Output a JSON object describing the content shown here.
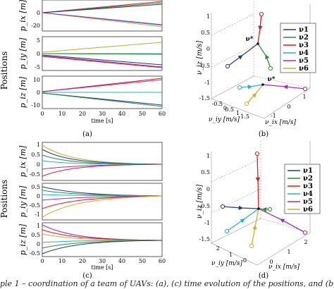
{
  "panels": {
    "a": {
      "side_label": "Positions",
      "ylabels": [
        "p_ix [m]",
        "p_iy [m]",
        "p_iz [m]"
      ],
      "xlabel": "time [s]",
      "xticks": [
        "0",
        "10",
        "20",
        "30",
        "40",
        "50",
        "60"
      ],
      "yticks": [
        [
          "0",
          "-20"
        ],
        [
          "5",
          "0",
          "-5"
        ],
        [
          "10",
          "0",
          "-10"
        ]
      ],
      "tag": "(a)"
    },
    "b": {
      "zlabel": "ν_iz [m/s]",
      "xlabel": "ν_ix [m/s]",
      "ylabel": "ν_iy [m/s]",
      "ztick_labels": [
        "1",
        "0.5",
        "0",
        "-0.5",
        "-1",
        "-1.5"
      ],
      "xtick_labels": [
        "-1",
        "0",
        "1"
      ],
      "ytick_labels": [
        "-0.5",
        "0",
        "0.5",
        "1",
        "1.5"
      ],
      "star_label": "ν*",
      "tag": "(b)"
    },
    "c": {
      "side_label": "Positions",
      "ylabels": [
        "p_ix [m]",
        "p_iy [m]",
        "p_iz [m]"
      ],
      "xlabel": "time [s]",
      "xticks": [
        "0",
        "10",
        "20",
        "30",
        "40",
        "50",
        "60"
      ],
      "yticks": [
        [
          "1",
          "0.5",
          "0",
          "-0.5"
        ],
        [
          "0.5",
          "0",
          "-0.5",
          "-1"
        ],
        [
          "1",
          "0.5",
          "0",
          "-0.5"
        ]
      ],
      "tag": "(c)"
    },
    "d": {
      "zlabel": "ν_iz [m/s]",
      "xlabel": "ν_ix [m/s]",
      "ylabel": "ν_iy [m/s]",
      "ztick_labels": [
        "1",
        "0.5",
        "0",
        "-0.5",
        "-1",
        "-1.5"
      ],
      "xtick_labels": [
        "0",
        "1",
        "2"
      ],
      "ytick_labels": [
        "2",
        "1",
        "0"
      ],
      "tag": "(d)"
    }
  },
  "legend": {
    "entries": [
      {
        "label": "ν1",
        "color": "#1f3d8a"
      },
      {
        "label": "ν2",
        "color": "#2e8b3a"
      },
      {
        "label": "ν3",
        "color": "#d62020"
      },
      {
        "label": "ν4",
        "color": "#20b5c0"
      },
      {
        "label": "ν5",
        "color": "#a030b0"
      },
      {
        "label": "ν6",
        "color": "#c8b030"
      }
    ]
  },
  "caption": "ple 1 – coordination of a team of UAVs: (a), (c) time evolution of the positions, and (b), (d) evolution of the velocit"
}
